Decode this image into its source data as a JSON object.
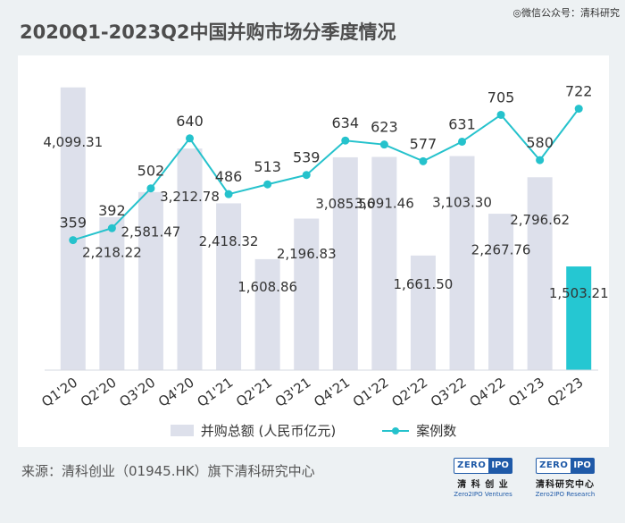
{
  "header": {
    "title": "2020Q1-2023Q2中国并购市场分季度情况",
    "watermark": "◎微信公众号：清科研究"
  },
  "legend": {
    "bar_label": "并购总额 (人民币亿元)",
    "line_label": "案例数"
  },
  "footer": {
    "source": "来源：清科创业（01945.HK）旗下清科研究中心",
    "logos": [
      {
        "mark_left": "ZERO",
        "mark_right": "IPO",
        "cn": "清  科  创  业",
        "en": "Zero2IPO Ventures"
      },
      {
        "mark_left": "ZERO",
        "mark_right": "IPO",
        "cn": "清科研究中心",
        "en": "Zero2IPO Research"
      }
    ]
  },
  "colors": {
    "bar": "#dde0eb",
    "bar_highlight": "#25c7d2",
    "line": "#25c2cc"
  },
  "chart_data": {
    "type": "bar",
    "categories": [
      "Q1'20",
      "Q2'20",
      "Q3'20",
      "Q4'20",
      "Q1'21",
      "Q2'21",
      "Q3'21",
      "Q4'21",
      "Q1'22",
      "Q2'22",
      "Q3'22",
      "Q4'22",
      "Q1'23",
      "Q2'23"
    ],
    "series": [
      {
        "name": "并购总额 (人民币亿元)",
        "type": "bar",
        "axis": "left",
        "values": [
          4099.31,
          2218.22,
          2581.47,
          3212.78,
          2418.32,
          1608.86,
          2196.83,
          3085.56,
          3091.46,
          1661.5,
          3103.3,
          2267.76,
          2796.62,
          1503.21
        ],
        "labels": [
          "4,099.31",
          "2,218.22",
          "2,581.47",
          "3,212.78",
          "2,418.32",
          "1,608.86",
          "2,196.83",
          "3,085.56",
          "3,091.46",
          "1,661.50",
          "3,103.30",
          "2,267.76",
          "2,796.62",
          "1,503.21"
        ],
        "highlight_index": 13
      },
      {
        "name": "案例数",
        "type": "line",
        "axis": "right",
        "values": [
          359,
          392,
          502,
          640,
          486,
          513,
          539,
          634,
          623,
          577,
          631,
          705,
          580,
          722
        ],
        "labels": [
          "359",
          "392",
          "502",
          "640",
          "486",
          "513",
          "539",
          "634",
          "623",
          "577",
          "631",
          "705",
          "580",
          "722"
        ]
      }
    ],
    "y_left_range": [
      0,
      4200
    ],
    "y_right_range": [
      0,
      800
    ],
    "grid": false,
    "legend_position": "bottom"
  }
}
